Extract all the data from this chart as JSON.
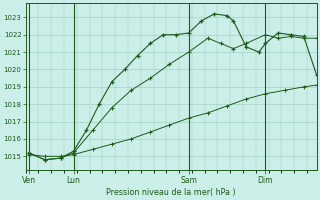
{
  "title": "Pression niveau de la mer( hPa )",
  "bg_color": "#cceee8",
  "grid_color": "#99ccbb",
  "line_color": "#1a5c1a",
  "ylim": [
    1014.2,
    1023.8
  ],
  "yticks": [
    1015,
    1016,
    1017,
    1018,
    1019,
    1020,
    1021,
    1022,
    1023
  ],
  "day_labels": [
    "Ven",
    "Lun",
    "Sam",
    "Dim"
  ],
  "day_positions": [
    0,
    14,
    50,
    74
  ],
  "xlim": [
    -1,
    90
  ],
  "line_straight_x": [
    0,
    5,
    10,
    14,
    20,
    26,
    32,
    38,
    44,
    50,
    56,
    62,
    68,
    74,
    80,
    86,
    90
  ],
  "line_straight_y": [
    1015.1,
    1015.0,
    1015.0,
    1015.1,
    1015.4,
    1015.7,
    1016.0,
    1016.4,
    1016.8,
    1017.2,
    1017.5,
    1017.9,
    1018.3,
    1018.6,
    1018.8,
    1019.0,
    1019.1
  ],
  "line_mid_x": [
    0,
    5,
    10,
    14,
    20,
    26,
    32,
    38,
    44,
    50,
    56,
    60,
    64,
    68,
    74,
    78,
    82,
    86,
    90
  ],
  "line_mid_y": [
    1015.2,
    1014.8,
    1014.9,
    1015.2,
    1016.5,
    1017.8,
    1018.8,
    1019.5,
    1020.3,
    1021.0,
    1021.8,
    1021.5,
    1021.2,
    1021.5,
    1022.0,
    1021.8,
    1021.9,
    1021.8,
    1021.8
  ],
  "line_top_x": [
    0,
    5,
    10,
    14,
    18,
    22,
    26,
    30,
    34,
    38,
    42,
    46,
    50,
    54,
    58,
    62,
    64,
    68,
    72,
    74,
    78,
    82,
    86,
    90
  ],
  "line_top_y": [
    1015.2,
    1014.8,
    1014.9,
    1015.3,
    1016.5,
    1018.0,
    1019.3,
    1020.0,
    1020.8,
    1021.5,
    1022.0,
    1022.0,
    1022.1,
    1022.8,
    1023.2,
    1023.1,
    1022.8,
    1021.3,
    1021.0,
    1021.5,
    1022.1,
    1022.0,
    1021.9,
    1019.7
  ]
}
